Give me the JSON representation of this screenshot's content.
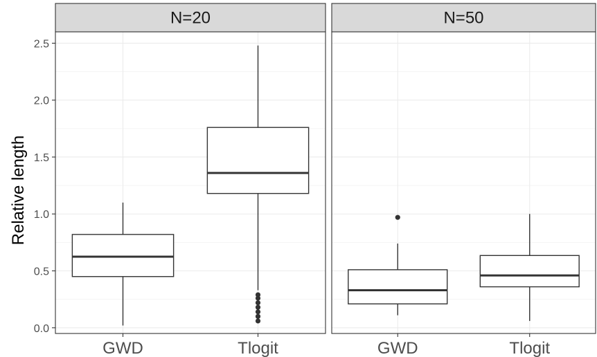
{
  "chart_data": {
    "type": "boxplot",
    "ylabel": "Relative length",
    "ylim": [
      -0.05,
      2.6
    ],
    "yticks": [
      0.0,
      0.5,
      1.0,
      1.5,
      2.0,
      2.5
    ],
    "ytick_labels": [
      "0.0",
      "0.5",
      "1.0",
      "1.5",
      "2.0",
      "2.5"
    ],
    "grid": true,
    "theme": "bw",
    "categories": [
      "GWD",
      "Tlogit"
    ],
    "panels": [
      {
        "strip_label": "N=20",
        "boxes": [
          {
            "category": "GWD",
            "min": 0.02,
            "q1": 0.45,
            "median": 0.625,
            "q3": 0.82,
            "max": 1.1,
            "outliers": []
          },
          {
            "category": "Tlogit",
            "min": 0.33,
            "q1": 1.18,
            "median": 1.36,
            "q3": 1.76,
            "max": 2.48,
            "outliers": [
              0.06,
              0.1,
              0.14,
              0.18,
              0.22,
              0.26,
              0.29
            ]
          }
        ]
      },
      {
        "strip_label": "N=50",
        "boxes": [
          {
            "category": "GWD",
            "min": 0.11,
            "q1": 0.21,
            "median": 0.33,
            "q3": 0.51,
            "max": 0.74,
            "outliers": [
              0.97
            ]
          },
          {
            "category": "Tlogit",
            "min": 0.06,
            "q1": 0.36,
            "median": 0.46,
            "q3": 0.635,
            "max": 1.0,
            "outliers": []
          }
        ]
      }
    ]
  }
}
